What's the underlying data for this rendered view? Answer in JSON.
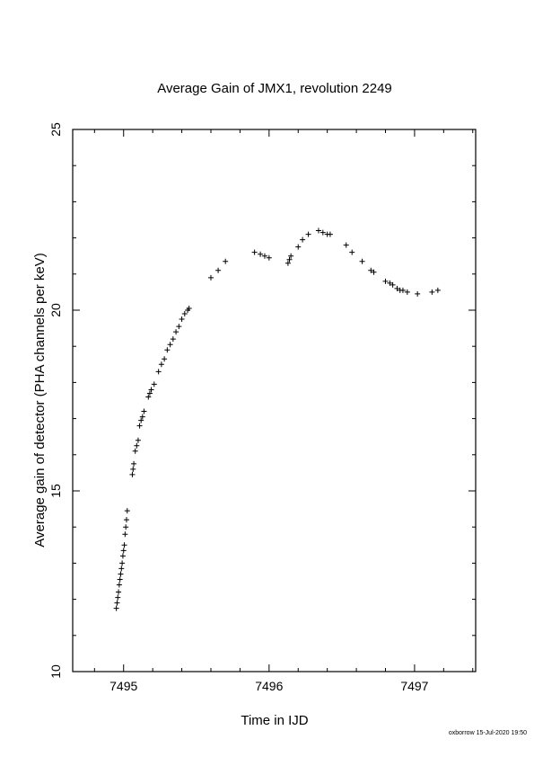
{
  "chart_data": {
    "type": "scatter",
    "title": "Average Gain of JMX1, revolution 2249",
    "xlabel": "Time in IJD",
    "ylabel": "Average gain of detector (PHA channels per keV)",
    "xlim": [
      7494.65,
      7497.42
    ],
    "ylim": [
      10,
      25
    ],
    "xticks": [
      7495,
      7496,
      7497
    ],
    "yticks": [
      10,
      15,
      20,
      25
    ],
    "xtick_labels": [
      "7495",
      "7496",
      "7497"
    ],
    "ytick_labels": [
      "10",
      "15",
      "20",
      "25"
    ],
    "marker": "+",
    "grid": false,
    "series": [
      {
        "points": [
          [
            7494.95,
            11.75
          ],
          [
            7494.955,
            11.9
          ],
          [
            7494.96,
            12.05
          ],
          [
            7494.965,
            12.2
          ],
          [
            7494.97,
            12.4
          ],
          [
            7494.975,
            12.55
          ],
          [
            7494.98,
            12.7
          ],
          [
            7494.985,
            12.85
          ],
          [
            7494.99,
            13.0
          ],
          [
            7494.995,
            13.2
          ],
          [
            7495.0,
            13.35
          ],
          [
            7495.005,
            13.5
          ],
          [
            7495.01,
            13.8
          ],
          [
            7495.015,
            14.0
          ],
          [
            7495.02,
            14.2
          ],
          [
            7495.025,
            14.45
          ],
          [
            7495.06,
            15.45
          ],
          [
            7495.065,
            15.6
          ],
          [
            7495.07,
            15.75
          ],
          [
            7495.08,
            16.1
          ],
          [
            7495.09,
            16.25
          ],
          [
            7495.1,
            16.4
          ],
          [
            7495.11,
            16.8
          ],
          [
            7495.12,
            16.95
          ],
          [
            7495.13,
            17.05
          ],
          [
            7495.14,
            17.2
          ],
          [
            7495.17,
            17.6
          ],
          [
            7495.18,
            17.7
          ],
          [
            7495.19,
            17.8
          ],
          [
            7495.21,
            17.95
          ],
          [
            7495.24,
            18.3
          ],
          [
            7495.26,
            18.5
          ],
          [
            7495.28,
            18.65
          ],
          [
            7495.3,
            18.9
          ],
          [
            7495.32,
            19.05
          ],
          [
            7495.34,
            19.2
          ],
          [
            7495.36,
            19.4
          ],
          [
            7495.38,
            19.55
          ],
          [
            7495.4,
            19.75
          ],
          [
            7495.42,
            19.9
          ],
          [
            7495.44,
            20.0
          ],
          [
            7495.45,
            20.05
          ],
          [
            7495.6,
            20.9
          ],
          [
            7495.65,
            21.1
          ],
          [
            7495.7,
            21.35
          ],
          [
            7495.9,
            21.6
          ],
          [
            7495.94,
            21.55
          ],
          [
            7495.97,
            21.5
          ],
          [
            7496.0,
            21.45
          ],
          [
            7496.13,
            21.3
          ],
          [
            7496.14,
            21.4
          ],
          [
            7496.15,
            21.5
          ],
          [
            7496.2,
            21.75
          ],
          [
            7496.23,
            21.95
          ],
          [
            7496.27,
            22.1
          ],
          [
            7496.34,
            22.2
          ],
          [
            7496.37,
            22.15
          ],
          [
            7496.4,
            22.1
          ],
          [
            7496.42,
            22.1
          ],
          [
            7496.53,
            21.8
          ],
          [
            7496.57,
            21.6
          ],
          [
            7496.64,
            21.35
          ],
          [
            7496.7,
            21.1
          ],
          [
            7496.72,
            21.05
          ],
          [
            7496.8,
            20.8
          ],
          [
            7496.83,
            20.75
          ],
          [
            7496.85,
            20.7
          ],
          [
            7496.88,
            20.6
          ],
          [
            7496.9,
            20.55
          ],
          [
            7496.92,
            20.55
          ],
          [
            7496.95,
            20.5
          ],
          [
            7497.02,
            20.45
          ],
          [
            7497.12,
            20.5
          ],
          [
            7497.16,
            20.55
          ]
        ]
      }
    ]
  },
  "footer": {
    "stamp": "oxborrow 15-Jul-2020 19:50"
  }
}
